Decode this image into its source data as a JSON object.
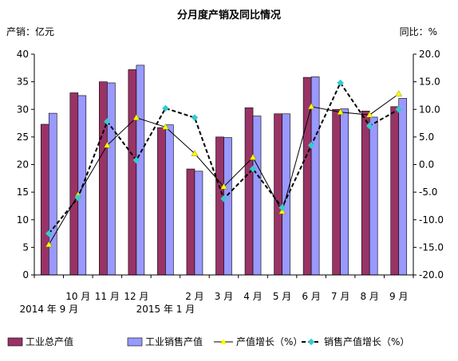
{
  "chart_data": {
    "type": "bar",
    "title": "分月度产销及同比情况",
    "ylabel_left": "产销：亿元",
    "ylabel_right": "同比：%",
    "categories": [
      "2014 年 9 月",
      "10 月",
      "11 月",
      "12 月",
      "2015 年 1 月",
      "2 月",
      "3 月",
      "4 月",
      "5 月",
      "6 月",
      "7 月",
      "8 月",
      "9 月"
    ],
    "category_labels_row1": [
      "",
      "10 月",
      "11 月",
      "12 月",
      "",
      "2 月",
      "3 月",
      "4 月",
      "5 月",
      "6 月",
      "7 月",
      "8 月",
      "9 月"
    ],
    "category_labels_row2": [
      {
        "text": "2014 年 9 月",
        "index": 0
      },
      {
        "text": "2015 年 1 月",
        "index": 4
      }
    ],
    "ylim_left": [
      0,
      40
    ],
    "yticks_left": [
      "0",
      "5",
      "10",
      "15",
      "20",
      "25",
      "30",
      "35",
      "40"
    ],
    "ylim_right": [
      -20,
      20
    ],
    "yticks_right": [
      "-20.0",
      "-15.0",
      "-10.0",
      "-5.0",
      "0.0",
      "5.0",
      "10.0",
      "15.0",
      "20.0"
    ],
    "series": [
      {
        "name": "工业总产值",
        "kind": "bar",
        "axis": "left",
        "color": "#993366",
        "values": [
          27.3,
          33.0,
          35.0,
          37.2,
          26.7,
          19.2,
          25.0,
          30.3,
          29.2,
          35.8,
          30.0,
          29.7,
          30.5
        ]
      },
      {
        "name": "工业销售产值",
        "kind": "bar",
        "axis": "left",
        "color": "#9999ff",
        "values": [
          29.3,
          32.5,
          34.8,
          38.0,
          27.2,
          18.8,
          24.9,
          28.8,
          29.2,
          35.9,
          30.1,
          28.6,
          32.0
        ]
      },
      {
        "name": "产值增长（%）",
        "kind": "line",
        "axis": "right",
        "color": "#000000",
        "marker_color": "#ffff00",
        "values": [
          -14.5,
          -5.5,
          3.5,
          8.5,
          6.8,
          2.0,
          -4.0,
          1.3,
          -8.5,
          10.5,
          9.5,
          9.0,
          12.8
        ]
      },
      {
        "name": "销售产值增长（%）",
        "kind": "line",
        "axis": "right",
        "color": "#000000",
        "marker_color": "#33cccc",
        "dashed": true,
        "values": [
          -12.5,
          -6.0,
          7.8,
          0.8,
          10.2,
          8.5,
          -6.2,
          -0.8,
          -7.8,
          3.5,
          14.8,
          7.0,
          10.0
        ]
      }
    ],
    "grid": false,
    "legend_position": "bottom"
  }
}
